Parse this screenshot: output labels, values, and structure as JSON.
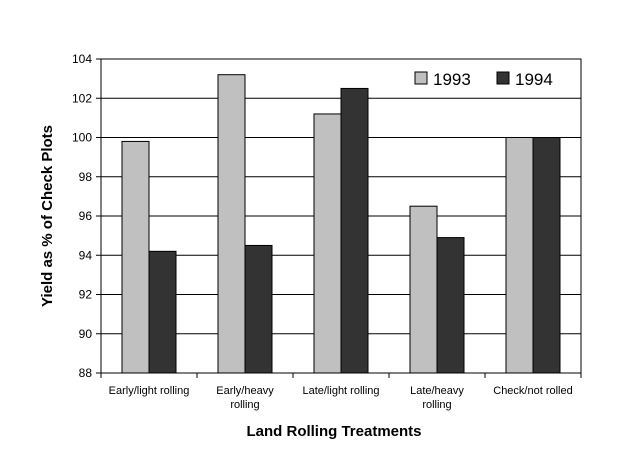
{
  "chart_data": {
    "type": "bar",
    "title": "",
    "xlabel": "Land Rolling Treatments",
    "ylabel": "Yield as % of Check Plots",
    "categories": [
      [
        "Early/light rolling"
      ],
      [
        "Early/heavy",
        "rolling"
      ],
      [
        "Late/light rolling"
      ],
      [
        "Late/heavy",
        "rolling"
      ],
      [
        "Check/not rolled"
      ]
    ],
    "series": [
      {
        "name": "1993",
        "color": "#c0c0c0",
        "values": [
          99.8,
          103.2,
          101.2,
          96.5,
          100.0
        ]
      },
      {
        "name": "1994",
        "color": "#333333",
        "values": [
          94.2,
          94.5,
          102.5,
          94.9,
          100.0
        ]
      }
    ],
    "ylim": [
      88,
      104
    ],
    "yticks": [
      88,
      90,
      92,
      94,
      96,
      98,
      100,
      102,
      104
    ],
    "grid": true,
    "legend_position": "top-right"
  }
}
